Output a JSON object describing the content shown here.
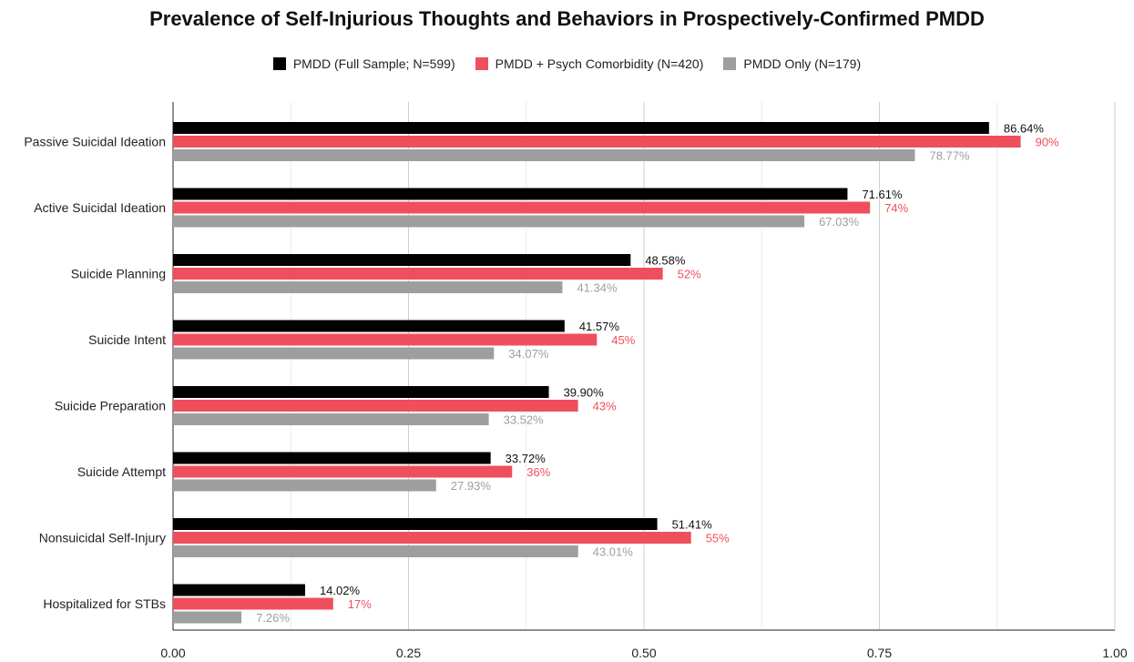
{
  "chart_data": {
    "type": "bar",
    "orientation": "horizontal",
    "title": "Prevalence of Self-Injurious Thoughts and Behaviors in Prospectively-Confirmed PMDD",
    "xlabel": "",
    "ylabel": "",
    "xlim": [
      0,
      1
    ],
    "xticks": [
      0,
      0.25,
      0.5,
      0.75,
      1
    ],
    "xtick_labels": [
      "0.00",
      "0.25",
      "0.50",
      "0.75",
      "1.00"
    ],
    "grid": true,
    "legend_position": "top-center",
    "categories": [
      "Passive Suicidal Ideation",
      "Active Suicidal Ideation",
      "Suicide Planning",
      "Suicide Intent",
      "Suicide Preparation",
      "Suicide Attempt",
      "Nonsuicidal Self-Injury",
      "Hospitalized for STBs"
    ],
    "series": [
      {
        "name": "PMDD (Full Sample; N=599)",
        "color": "#000000",
        "label_color": "#111111",
        "values": [
          0.8664,
          0.7161,
          0.4858,
          0.4157,
          0.399,
          0.3372,
          0.5141,
          0.1402
        ],
        "labels": [
          "86.64%",
          "71.61%",
          "48.58%",
          "41.57%",
          "39.90%",
          "33.72%",
          "51.41%",
          "14.02%"
        ]
      },
      {
        "name": "PMDD + Psych Comorbidity (N=420)",
        "color": "#ef4f5c",
        "label_color": "#ef4f5c",
        "values": [
          0.9,
          0.74,
          0.52,
          0.45,
          0.43,
          0.36,
          0.55,
          0.17
        ],
        "labels": [
          "90%",
          "74%",
          "52%",
          "45%",
          "43%",
          "36%",
          "55%",
          "17%"
        ]
      },
      {
        "name": "PMDD Only (N=179)",
        "color": "#9e9e9e",
        "label_color": "#9e9e9e",
        "values": [
          0.7877,
          0.6703,
          0.4134,
          0.3407,
          0.3352,
          0.2793,
          0.4301,
          0.0726
        ],
        "labels": [
          "78.77%",
          "67.03%",
          "41.34%",
          "34.07%",
          "33.52%",
          "27.93%",
          "43.01%",
          "7.26%"
        ]
      }
    ]
  }
}
